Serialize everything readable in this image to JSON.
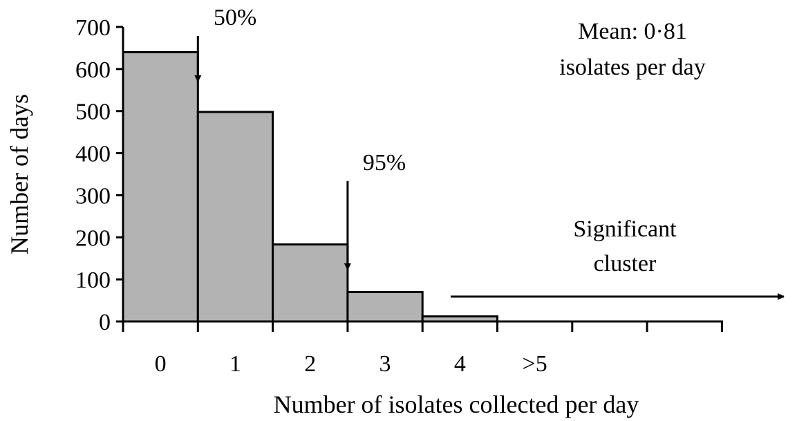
{
  "chart_data": {
    "type": "bar",
    "categories": [
      "0",
      "1",
      "2",
      "3",
      "4",
      ">5"
    ],
    "values": [
      640,
      498,
      183,
      70,
      12,
      0
    ],
    "xlabel": "Number of isolates collected per day",
    "ylabel": "Number of days",
    "ylim": [
      0,
      700
    ],
    "yticks": [
      "0",
      "100",
      "200",
      "300",
      "400",
      "500",
      "600",
      "700"
    ],
    "ytick_values": [
      0,
      100,
      200,
      300,
      400,
      500,
      600,
      700
    ],
    "x_tick_count": 9,
    "bar_color": "#b3b3b3",
    "grid": false,
    "annotations": {
      "median_label": "50%",
      "median_at": 1.5,
      "p95_label": "95%",
      "p95_at": 3.5,
      "mean_line1": "Mean: 0·81",
      "mean_line2": "isolates per day",
      "cluster_line1": "Significant",
      "cluster_line2": "cluster"
    }
  }
}
